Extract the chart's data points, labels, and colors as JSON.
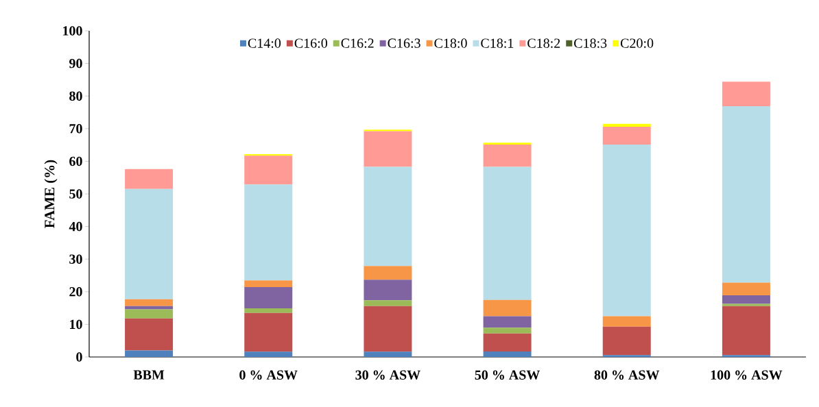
{
  "chart_data": {
    "type": "bar",
    "stacked": true,
    "ylabel": "FAME (%)",
    "categories": [
      "BBM",
      "0 % ASW",
      "30 % ASW",
      "50 % ASW",
      "80 % ASW",
      "100 % ASW"
    ],
    "series": [
      {
        "name": "C14:0",
        "color": "#4f81bd",
        "values": [
          2.0,
          1.6,
          1.6,
          1.7,
          0.6,
          0.6
        ]
      },
      {
        "name": "C16:0",
        "color": "#c0504d",
        "values": [
          9.8,
          11.9,
          14.0,
          5.5,
          8.7,
          15.0
        ]
      },
      {
        "name": "C16:2",
        "color": "#9bbb59",
        "values": [
          2.8,
          1.4,
          1.8,
          1.8,
          0,
          0.7
        ]
      },
      {
        "name": "C16:3",
        "color": "#8064a2",
        "values": [
          1.0,
          6.5,
          6.3,
          3.5,
          0,
          2.6
        ]
      },
      {
        "name": "C18:0",
        "color": "#f79646",
        "values": [
          2.1,
          2.1,
          4.2,
          5.0,
          3.2,
          3.9
        ]
      },
      {
        "name": "C18:1",
        "color": "#b7dde8",
        "values": [
          33.8,
          29.4,
          30.4,
          40.8,
          52.6,
          54.1
        ]
      },
      {
        "name": "C18:2",
        "color": "#ff9a94",
        "values": [
          6.1,
          8.8,
          10.9,
          6.8,
          5.5,
          7.5
        ]
      },
      {
        "name": "C18:3",
        "color": "#4f6228",
        "values": [
          0,
          0,
          0,
          0,
          0,
          0
        ]
      },
      {
        "name": "C20:0",
        "color": "#ffff00",
        "values": [
          0,
          0.5,
          0.5,
          0.6,
          0.9,
          0
        ]
      }
    ],
    "ylim": [
      0,
      100
    ],
    "yticks": [
      0,
      10,
      20,
      30,
      40,
      50,
      60,
      70,
      80,
      90,
      100
    ],
    "grid": false,
    "legend": "top"
  }
}
